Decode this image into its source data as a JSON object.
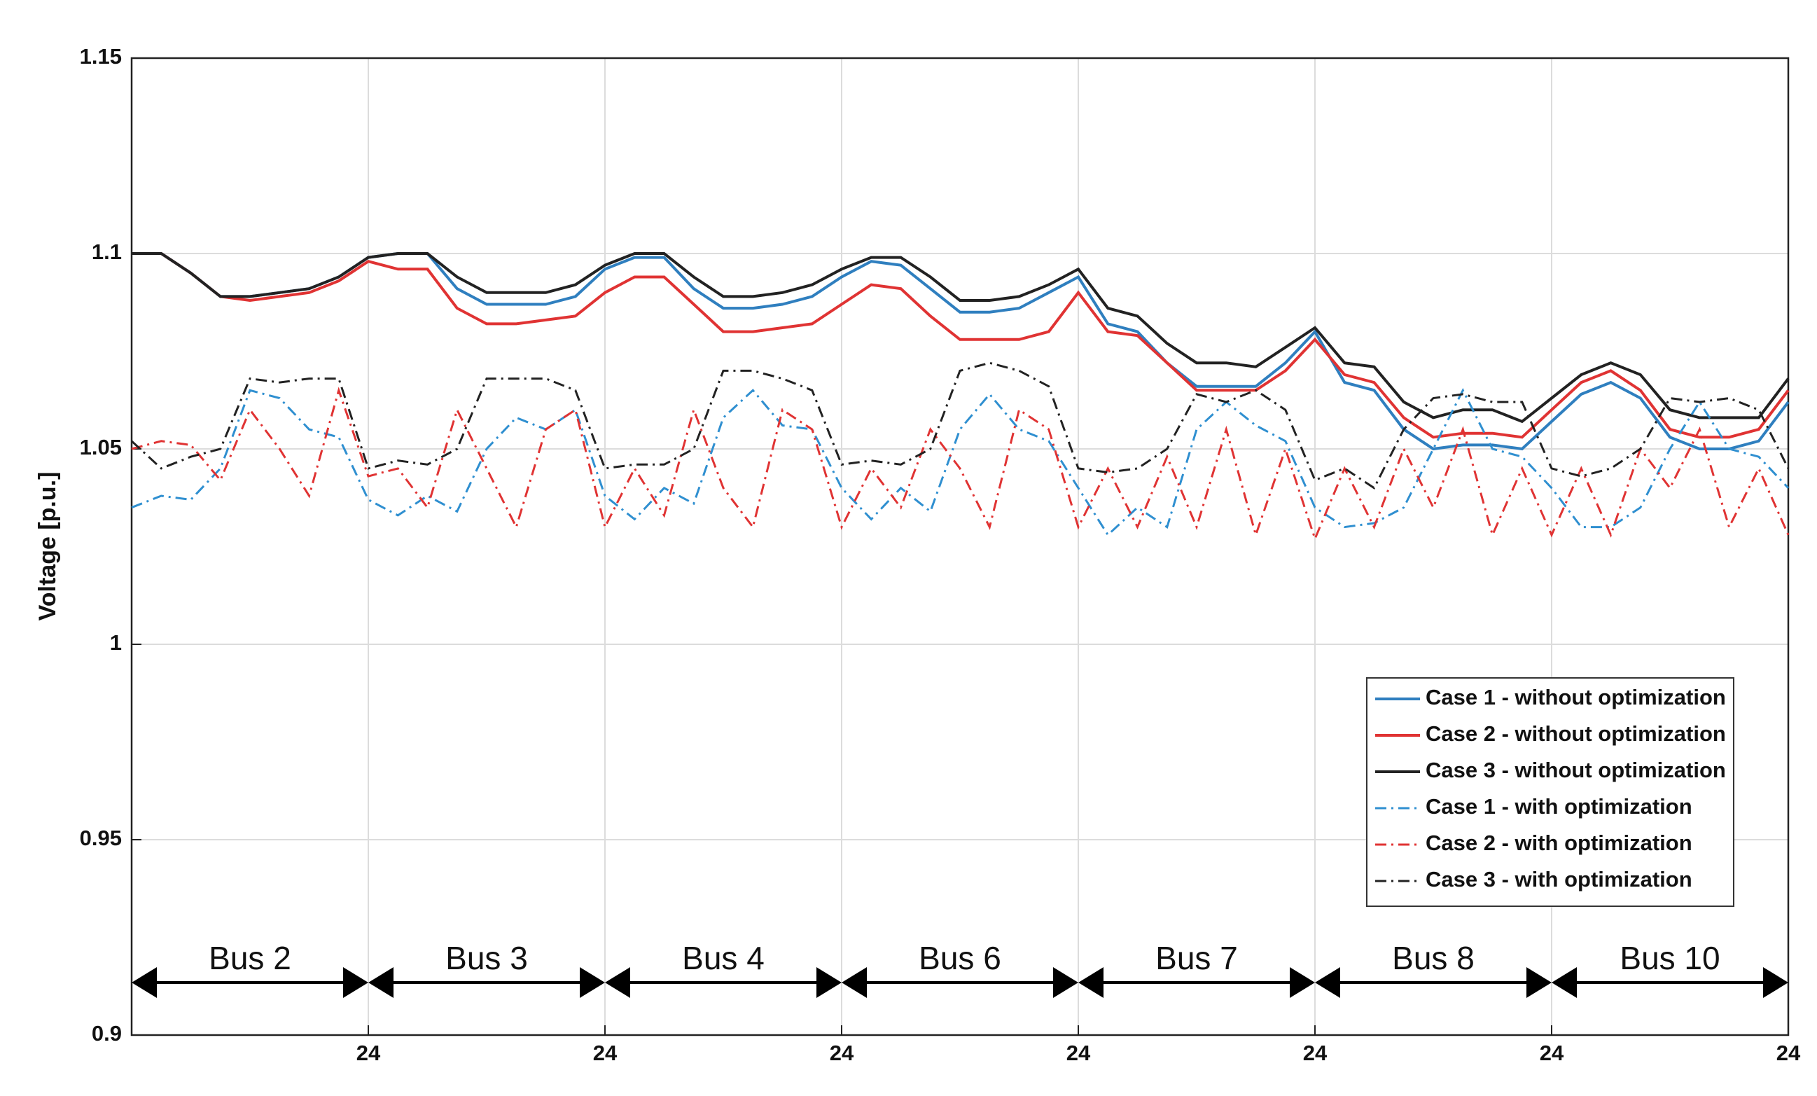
{
  "chart_data": {
    "type": "line",
    "y_label": "Voltage [p.u.]",
    "annotations": [
      "Bus 2",
      "Bus 3",
      "Bus 4",
      "Bus 6",
      "Bus 7",
      "Bus 8",
      "Bus 10"
    ],
    "x": [
      0,
      3,
      6,
      9,
      12,
      15,
      18,
      21,
      24,
      27,
      30,
      33,
      36,
      39,
      42,
      45,
      48,
      51,
      54,
      57,
      60,
      63,
      66,
      69,
      72,
      75,
      78,
      81,
      84,
      87,
      90,
      93,
      96,
      99,
      102,
      105,
      108,
      111,
      114,
      117,
      120,
      123,
      126,
      129,
      132,
      135,
      138,
      141,
      144,
      147,
      150,
      153,
      156,
      159,
      162,
      165,
      168
    ],
    "xlim": [
      0,
      168
    ],
    "xticks": [
      24,
      {
        "value": 48,
        "label": "24"
      },
      {
        "value": 72,
        "label": "24"
      },
      {
        "value": 96,
        "label": "24"
      },
      {
        "value": 120,
        "label": "24"
      },
      {
        "value": 144,
        "label": "24"
      },
      {
        "value": 168,
        "label": "24"
      }
    ],
    "ylim": [
      0.9,
      1.15
    ],
    "yticks": [
      0.9,
      0.95,
      1,
      1.05,
      1.1,
      1.15
    ],
    "grid": true,
    "legend": "lower right",
    "series": [
      {
        "name": "Case 1 - without optimization",
        "color": "#2f7fbf",
        "style": "solid",
        "values": [
          1.1,
          1.1,
          1.095,
          1.089,
          1.089,
          1.09,
          1.091,
          1.094,
          1.099,
          1.1,
          1.1,
          1.091,
          1.087,
          1.087,
          1.087,
          1.089,
          1.096,
          1.099,
          1.099,
          1.091,
          1.086,
          1.086,
          1.087,
          1.089,
          1.094,
          1.098,
          1.097,
          1.091,
          1.085,
          1.085,
          1.086,
          1.09,
          1.094,
          1.082,
          1.08,
          1.072,
          1.066,
          1.066,
          1.066,
          1.072,
          1.08,
          1.067,
          1.065,
          1.055,
          1.05,
          1.051,
          1.051,
          1.05,
          1.057,
          1.064,
          1.067,
          1.063,
          1.053,
          1.05,
          1.05,
          1.052,
          1.062
        ]
      },
      {
        "name": "Case 2 - without optimization",
        "color": "#e03333",
        "style": "solid",
        "values": [
          1.1,
          1.1,
          1.095,
          1.089,
          1.088,
          1.089,
          1.09,
          1.093,
          1.098,
          1.096,
          1.096,
          1.086,
          1.082,
          1.082,
          1.083,
          1.084,
          1.09,
          1.094,
          1.094,
          1.087,
          1.08,
          1.08,
          1.081,
          1.082,
          1.087,
          1.092,
          1.091,
          1.084,
          1.078,
          1.078,
          1.078,
          1.08,
          1.09,
          1.08,
          1.079,
          1.072,
          1.065,
          1.065,
          1.065,
          1.07,
          1.078,
          1.069,
          1.067,
          1.058,
          1.053,
          1.054,
          1.054,
          1.053,
          1.06,
          1.067,
          1.07,
          1.065,
          1.055,
          1.053,
          1.053,
          1.055,
          1.065
        ]
      },
      {
        "name": "Case 3 - without optimization",
        "color": "#222222",
        "style": "solid",
        "values": [
          1.1,
          1.1,
          1.095,
          1.089,
          1.089,
          1.09,
          1.091,
          1.094,
          1.099,
          1.1,
          1.1,
          1.094,
          1.09,
          1.09,
          1.09,
          1.092,
          1.097,
          1.1,
          1.1,
          1.094,
          1.089,
          1.089,
          1.09,
          1.092,
          1.096,
          1.099,
          1.099,
          1.094,
          1.088,
          1.088,
          1.089,
          1.092,
          1.096,
          1.086,
          1.084,
          1.077,
          1.072,
          1.072,
          1.071,
          1.076,
          1.081,
          1.072,
          1.071,
          1.062,
          1.058,
          1.06,
          1.06,
          1.057,
          1.063,
          1.069,
          1.072,
          1.069,
          1.06,
          1.058,
          1.058,
          1.058,
          1.068
        ]
      },
      {
        "name": "Case 1 - with optimization",
        "color": "#2f8fd0",
        "style": "dashdot",
        "values": [
          1.035,
          1.038,
          1.037,
          1.045,
          1.065,
          1.063,
          1.055,
          1.053,
          1.037,
          1.033,
          1.038,
          1.034,
          1.05,
          1.058,
          1.055,
          1.06,
          1.038,
          1.032,
          1.04,
          1.036,
          1.058,
          1.065,
          1.056,
          1.055,
          1.04,
          1.032,
          1.04,
          1.034,
          1.055,
          1.064,
          1.055,
          1.052,
          1.04,
          1.028,
          1.035,
          1.03,
          1.055,
          1.062,
          1.056,
          1.052,
          1.035,
          1.03,
          1.031,
          1.035,
          1.05,
          1.065,
          1.05,
          1.048,
          1.04,
          1.03,
          1.03,
          1.035,
          1.05,
          1.062,
          1.05,
          1.048,
          1.04
        ]
      },
      {
        "name": "Case 2 - with optimization",
        "color": "#e03333",
        "style": "dashdot",
        "values": [
          1.05,
          1.052,
          1.051,
          1.042,
          1.06,
          1.05,
          1.038,
          1.065,
          1.043,
          1.045,
          1.035,
          1.06,
          1.045,
          1.03,
          1.055,
          1.06,
          1.03,
          1.045,
          1.033,
          1.06,
          1.04,
          1.03,
          1.06,
          1.055,
          1.03,
          1.045,
          1.035,
          1.055,
          1.045,
          1.03,
          1.06,
          1.055,
          1.03,
          1.045,
          1.03,
          1.048,
          1.03,
          1.055,
          1.028,
          1.05,
          1.027,
          1.045,
          1.03,
          1.05,
          1.035,
          1.055,
          1.028,
          1.045,
          1.028,
          1.045,
          1.028,
          1.05,
          1.04,
          1.055,
          1.03,
          1.045,
          1.028
        ]
      },
      {
        "name": "Case 3 - with optimization",
        "color": "#222222",
        "style": "dashdot",
        "values": [
          1.052,
          1.045,
          1.048,
          1.05,
          1.068,
          1.067,
          1.068,
          1.068,
          1.045,
          1.047,
          1.046,
          1.05,
          1.068,
          1.068,
          1.068,
          1.065,
          1.045,
          1.046,
          1.046,
          1.05,
          1.07,
          1.07,
          1.068,
          1.065,
          1.046,
          1.047,
          1.046,
          1.05,
          1.07,
          1.072,
          1.07,
          1.066,
          1.045,
          1.044,
          1.045,
          1.05,
          1.064,
          1.062,
          1.065,
          1.06,
          1.042,
          1.045,
          1.04,
          1.055,
          1.063,
          1.064,
          1.062,
          1.062,
          1.045,
          1.043,
          1.045,
          1.05,
          1.063,
          1.062,
          1.063,
          1.06,
          1.045
        ]
      }
    ]
  }
}
